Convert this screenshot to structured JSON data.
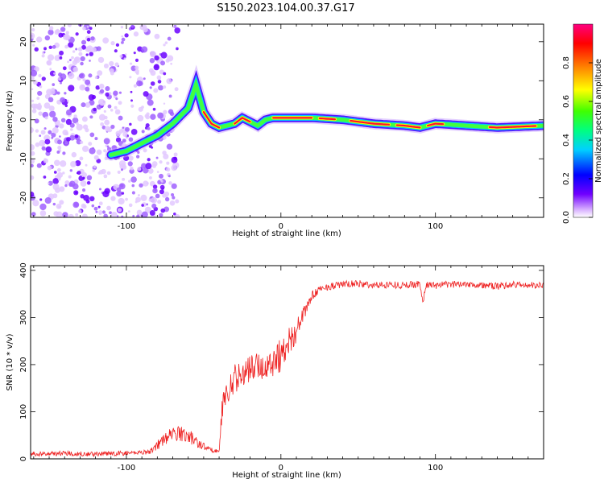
{
  "title": "S150.2023.104.00.37.G17",
  "chart_data": [
    {
      "type": "heatmap",
      "xlabel": "Height of straight line (km)",
      "ylabel": "Frequency (Hz)",
      "xlim": [
        -162,
        170
      ],
      "ylim": [
        -25,
        24.5
      ],
      "x_ticks": [
        -100,
        0,
        100
      ],
      "y_ticks": [
        -20,
        -10,
        0,
        10,
        20
      ],
      "colorbar": {
        "label": "Normalized spectral amplitude",
        "range": [
          0,
          1
        ],
        "ticks": [
          "0.0",
          "0.2",
          "0.4",
          "0.6",
          "0.8"
        ],
        "colors": [
          "#ffffff",
          "#b060ff",
          "#5000ff",
          "#0000ff",
          "#00c8ff",
          "#00ff80",
          "#40ff00",
          "#ffff00",
          "#ff8000",
          "#ff0000",
          "#ff0080"
        ]
      },
      "ridge": {
        "x": [
          -110,
          -100,
          -90,
          -80,
          -70,
          -60,
          -55,
          -50,
          -45,
          -40,
          -35,
          -30,
          -25,
          -20,
          -15,
          -10,
          -5,
          0,
          20,
          40,
          60,
          80,
          90,
          100,
          120,
          140,
          170
        ],
        "y": [
          -9,
          -8,
          -6,
          -4,
          -1,
          3,
          9,
          2,
          -1,
          -2,
          -1.5,
          -1,
          0.5,
          -0.5,
          -1.5,
          0,
          0.5,
          0.5,
          0.5,
          0,
          -1,
          -1.5,
          -2,
          -1,
          -1.5,
          -2,
          -1.5
        ]
      }
    },
    {
      "type": "line",
      "xlabel": "Height of straight line (km)",
      "ylabel": "SNR (10 * v/v)",
      "xlim": [
        -162,
        170
      ],
      "ylim": [
        0,
        410
      ],
      "x_ticks": [
        -100,
        0,
        100
      ],
      "y_ticks": [
        0,
        100,
        200,
        300,
        400
      ],
      "series": [
        {
          "color": "#ee2222",
          "x": [
            -162,
            -140,
            -120,
            -100,
            -85,
            -78,
            -72,
            -65,
            -58,
            -52,
            -46,
            -40,
            -38,
            -35,
            -30,
            -25,
            -20,
            -15,
            -10,
            -5,
            0,
            5,
            10,
            15,
            20,
            25,
            30,
            40,
            50,
            60,
            70,
            80,
            90,
            92,
            94,
            100,
            110,
            120,
            130,
            140,
            150,
            160,
            170
          ],
          "values": [
            10,
            12,
            10,
            12,
            15,
            35,
            50,
            55,
            45,
            30,
            20,
            15,
            110,
            140,
            170,
            180,
            190,
            200,
            190,
            210,
            220,
            250,
            270,
            310,
            345,
            360,
            365,
            370,
            372,
            368,
            370,
            368,
            372,
            330,
            370,
            368,
            370,
            372,
            368,
            366,
            370,
            368,
            368
          ],
          "noise_amplitude": [
            10,
            10,
            10,
            10,
            10,
            25,
            30,
            35,
            30,
            20,
            10,
            8,
            50,
            60,
            60,
            60,
            60,
            60,
            60,
            70,
            80,
            60,
            50,
            30,
            20,
            15,
            15,
            15,
            15,
            15,
            15,
            15,
            15,
            15,
            15,
            15,
            15,
            15,
            15,
            15,
            15,
            15,
            15
          ]
        }
      ]
    }
  ]
}
